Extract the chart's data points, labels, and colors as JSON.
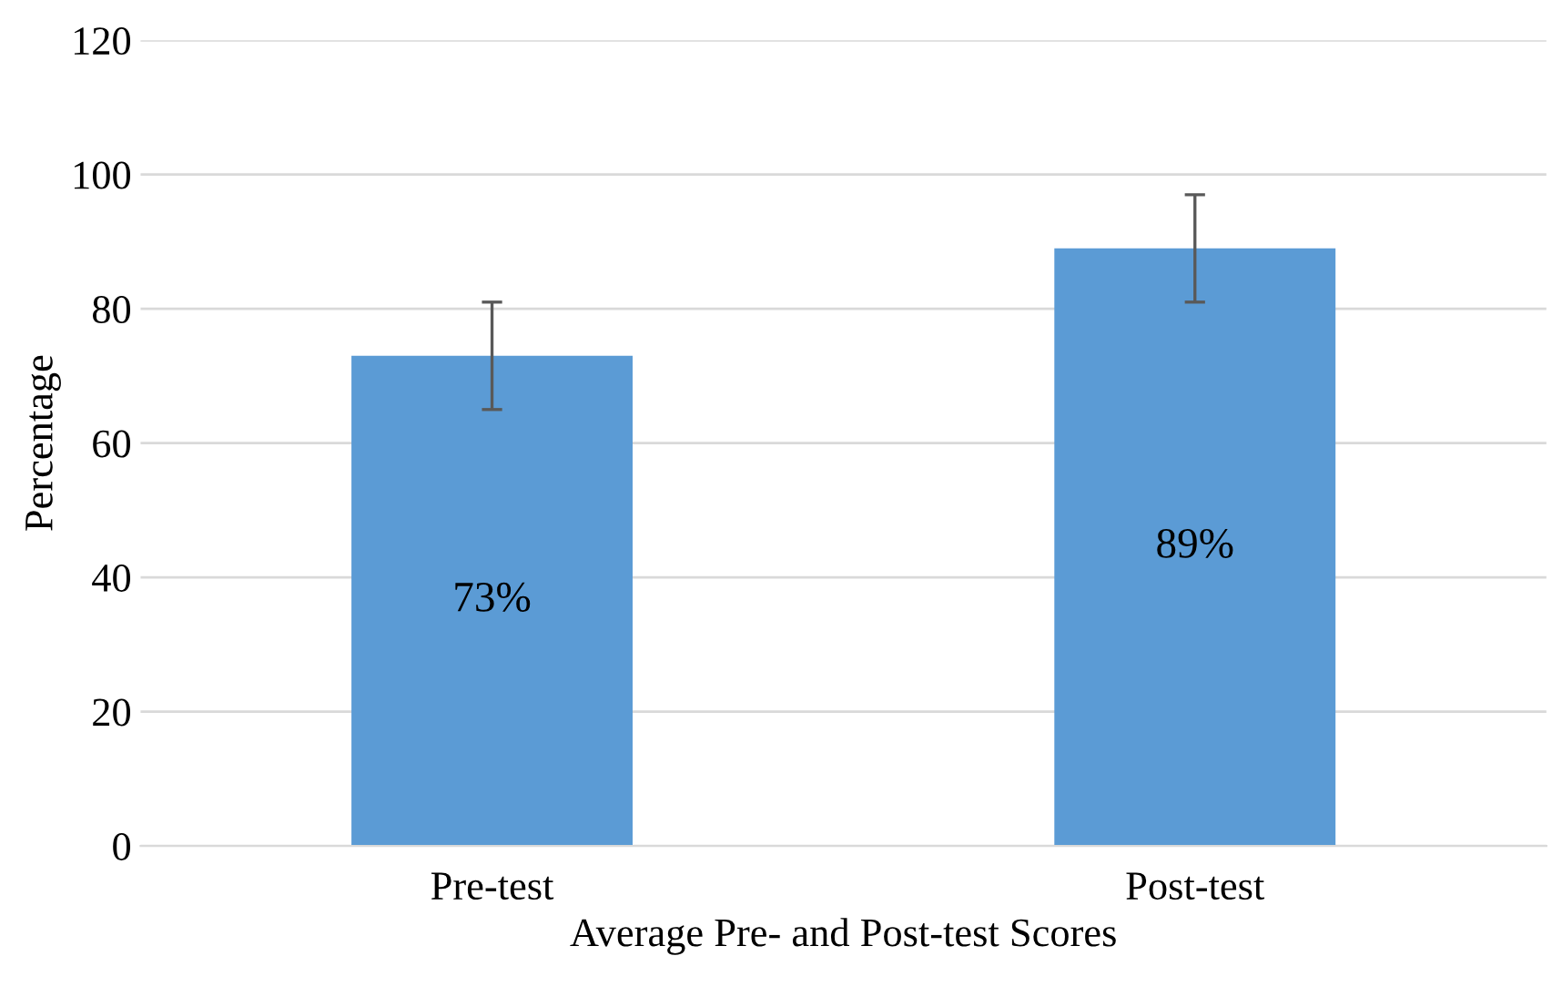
{
  "chart_data": {
    "type": "bar",
    "xlabel": "Average Pre- and Post-test Scores",
    "ylabel": "Percentage",
    "categories": [
      "Pre-test",
      "Post-test"
    ],
    "values": [
      73,
      89
    ],
    "errors": [
      8,
      8
    ],
    "value_labels": [
      "73%",
      "89%"
    ],
    "color": "#5b9bd5",
    "ylim": [
      0,
      120
    ],
    "yticks": [
      0,
      20,
      40,
      60,
      80,
      100,
      120
    ],
    "grid": "y",
    "legend": false
  }
}
